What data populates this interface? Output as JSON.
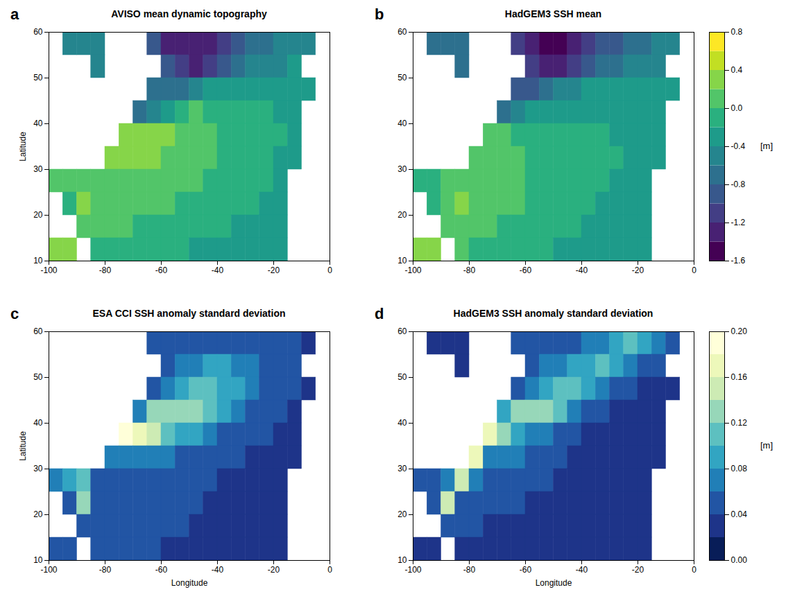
{
  "chart_data": [
    {
      "letter": "a",
      "title": "AVISO mean dynamic topography",
      "type": "heatmap",
      "ylabel": "Latitude",
      "xlim": [
        -100,
        0
      ],
      "ylim": [
        10,
        60
      ],
      "xticks": [
        -100,
        -80,
        -60,
        -40,
        -20,
        0
      ],
      "yticks": [
        10,
        20,
        30,
        40,
        50,
        60
      ],
      "lon_bins": [
        -100,
        -95,
        -90,
        -85,
        -80,
        -75,
        -70,
        -65,
        -60,
        -55,
        -50,
        -45,
        -40,
        -35,
        -30,
        -25,
        -20,
        -15,
        -10,
        -5,
        0
      ],
      "lat_bins": [
        60,
        55,
        50,
        45,
        40,
        35,
        30,
        25,
        20,
        15,
        10
      ],
      "z": [
        [
          null,
          -0.6,
          -0.6,
          -0.6,
          null,
          null,
          null,
          -1.0,
          -1.3,
          -1.4,
          -1.4,
          -1.3,
          -1.1,
          -0.9,
          -0.8,
          -0.7,
          -0.6,
          -0.5,
          -0.5,
          null
        ],
        [
          null,
          null,
          null,
          -0.6,
          null,
          null,
          null,
          null,
          -1.0,
          -1.2,
          -1.3,
          -1.1,
          -0.9,
          -0.7,
          -0.6,
          -0.5,
          -0.5,
          -0.4,
          null,
          null
        ],
        [
          null,
          null,
          null,
          null,
          null,
          null,
          null,
          -0.8,
          -0.8,
          -0.7,
          -0.5,
          -0.3,
          -0.3,
          -0.3,
          -0.3,
          -0.3,
          -0.3,
          -0.3,
          -0.3,
          null
        ],
        [
          null,
          null,
          null,
          null,
          null,
          null,
          -0.7,
          -0.5,
          -0.3,
          -0.1,
          0.1,
          -0.1,
          -0.2,
          -0.2,
          -0.2,
          -0.2,
          -0.3,
          -0.3,
          null,
          null
        ],
        [
          null,
          null,
          null,
          null,
          null,
          0.3,
          0.3,
          0.2,
          0.2,
          0.1,
          0.1,
          0.0,
          -0.1,
          -0.1,
          -0.2,
          -0.2,
          -0.2,
          -0.3,
          null,
          null
        ],
        [
          null,
          null,
          null,
          null,
          0.2,
          0.2,
          0.2,
          0.2,
          0.1,
          0.1,
          0.0,
          0.0,
          -0.1,
          -0.1,
          -0.2,
          -0.2,
          -0.3,
          -0.3,
          null,
          null
        ],
        [
          0.0,
          0.0,
          0.1,
          0.1,
          0.1,
          0.1,
          0.1,
          0.1,
          0.0,
          0.0,
          0.0,
          -0.1,
          -0.1,
          -0.2,
          -0.2,
          -0.2,
          -0.3,
          null,
          null,
          null
        ],
        [
          null,
          -0.1,
          0.2,
          0.0,
          0.0,
          0.0,
          0.0,
          0.0,
          0.0,
          -0.1,
          -0.1,
          -0.1,
          -0.2,
          -0.2,
          -0.2,
          -0.3,
          -0.3,
          null,
          null,
          null
        ],
        [
          null,
          null,
          0.0,
          0.1,
          0.1,
          0.0,
          -0.1,
          -0.1,
          -0.1,
          -0.1,
          -0.2,
          -0.2,
          -0.2,
          -0.3,
          -0.3,
          -0.3,
          -0.4,
          null,
          null,
          null
        ],
        [
          0.2,
          0.2,
          null,
          -0.1,
          -0.1,
          -0.1,
          -0.1,
          -0.2,
          -0.2,
          -0.2,
          -0.3,
          -0.3,
          -0.3,
          -0.3,
          -0.4,
          -0.4,
          -0.4,
          null,
          null,
          null
        ]
      ]
    },
    {
      "letter": "b",
      "title": "HadGEM3 SSH mean",
      "type": "heatmap",
      "xlim": [
        -100,
        0
      ],
      "ylim": [
        10,
        60
      ],
      "xticks": [
        -100,
        -80,
        -60,
        -40,
        -20,
        0
      ],
      "yticks": [
        10,
        20,
        30,
        40,
        50,
        60
      ],
      "lon_bins": [
        -100,
        -95,
        -90,
        -85,
        -80,
        -75,
        -70,
        -65,
        -60,
        -55,
        -50,
        -45,
        -40,
        -35,
        -30,
        -25,
        -20,
        -15,
        -10,
        -5,
        0
      ],
      "lat_bins": [
        60,
        55,
        50,
        45,
        40,
        35,
        30,
        25,
        20,
        15,
        10
      ],
      "z": [
        [
          null,
          -0.7,
          -0.7,
          -0.7,
          null,
          null,
          null,
          -1.1,
          -1.4,
          -1.5,
          -1.5,
          -1.4,
          -1.2,
          -1.0,
          -0.9,
          -0.8,
          -0.7,
          -0.6,
          -0.6,
          null
        ],
        [
          null,
          null,
          null,
          -0.7,
          null,
          null,
          null,
          null,
          -1.1,
          -1.3,
          -1.3,
          -1.1,
          -0.9,
          -0.8,
          -0.7,
          -0.6,
          -0.6,
          -0.5,
          null,
          null
        ],
        [
          null,
          null,
          null,
          null,
          null,
          null,
          null,
          -0.9,
          -0.9,
          -0.8,
          -0.6,
          -0.5,
          -0.4,
          -0.4,
          -0.4,
          -0.4,
          -0.4,
          -0.4,
          -0.4,
          null
        ],
        [
          null,
          null,
          null,
          null,
          null,
          null,
          -0.8,
          -0.6,
          -0.4,
          -0.3,
          -0.3,
          -0.3,
          -0.3,
          -0.3,
          -0.3,
          -0.3,
          -0.4,
          -0.4,
          null,
          null
        ],
        [
          null,
          null,
          null,
          null,
          null,
          0.0,
          0.0,
          -0.1,
          -0.1,
          -0.1,
          -0.2,
          -0.2,
          -0.2,
          -0.2,
          -0.3,
          -0.3,
          -0.3,
          -0.4,
          null,
          null
        ],
        [
          null,
          null,
          null,
          null,
          0.1,
          0.0,
          0.0,
          0.0,
          -0.1,
          -0.1,
          -0.1,
          -0.1,
          -0.2,
          -0.2,
          -0.2,
          -0.3,
          -0.3,
          -0.4,
          null,
          null
        ],
        [
          -0.1,
          -0.1,
          0.0,
          0.1,
          0.1,
          0.0,
          0.0,
          0.0,
          -0.1,
          -0.1,
          -0.1,
          -0.1,
          -0.2,
          -0.2,
          -0.3,
          -0.3,
          -0.3,
          null,
          null,
          null
        ],
        [
          null,
          -0.1,
          0.1,
          0.2,
          0.1,
          0.0,
          0.0,
          0.0,
          -0.1,
          -0.1,
          -0.1,
          -0.2,
          -0.2,
          -0.3,
          -0.3,
          -0.3,
          -0.4,
          null,
          null,
          null
        ],
        [
          null,
          null,
          0.1,
          0.1,
          0.1,
          0.0,
          -0.1,
          -0.1,
          -0.1,
          -0.2,
          -0.2,
          -0.2,
          -0.3,
          -0.3,
          -0.3,
          -0.4,
          -0.4,
          null,
          null,
          null
        ],
        [
          0.3,
          0.3,
          null,
          0.0,
          -0.1,
          -0.1,
          -0.1,
          -0.2,
          -0.2,
          -0.2,
          -0.3,
          -0.3,
          -0.3,
          -0.4,
          -0.4,
          -0.4,
          -0.4,
          null,
          null,
          null
        ]
      ],
      "colorbar": {
        "label": "[m]",
        "color": "viridis",
        "range": [
          -1.6,
          0.8
        ],
        "levels": [
          -1.6,
          -1.4,
          -1.2,
          -1.0,
          -0.8,
          -0.6,
          -0.4,
          -0.2,
          0.0,
          0.2,
          0.4,
          0.6,
          0.8
        ],
        "ticks": [
          -1.6,
          -1.2,
          -0.8,
          -0.4,
          {
            "value": 0,
            "label": "0.0"
          },
          0.4,
          0.8
        ]
      }
    },
    {
      "letter": "c",
      "title": "ESA CCI SSH anomaly standard deviation",
      "type": "heatmap",
      "xlabel": "Longitude",
      "ylabel": "Latitude",
      "xlim": [
        -100,
        0
      ],
      "ylim": [
        10,
        60
      ],
      "xticks": [
        -100,
        -80,
        -60,
        -40,
        -20,
        0
      ],
      "yticks": [
        10,
        20,
        30,
        40,
        50,
        60
      ],
      "lon_bins": [
        -100,
        -95,
        -90,
        -85,
        -80,
        -75,
        -70,
        -65,
        -60,
        -55,
        -50,
        -45,
        -40,
        -35,
        -30,
        -25,
        -20,
        -15,
        -10,
        -5,
        0
      ],
      "lat_bins": [
        60,
        55,
        50,
        45,
        40,
        35,
        30,
        25,
        20,
        15,
        10
      ],
      "z": [
        [
          null,
          null,
          null,
          null,
          null,
          null,
          null,
          0.05,
          0.05,
          0.05,
          0.05,
          0.05,
          0.05,
          0.05,
          0.04,
          0.04,
          0.04,
          0.04,
          0.03,
          null
        ],
        [
          null,
          null,
          null,
          null,
          null,
          null,
          null,
          null,
          0.05,
          0.06,
          0.07,
          0.08,
          0.08,
          0.07,
          0.06,
          0.05,
          0.04,
          0.04,
          null,
          null
        ],
        [
          null,
          null,
          null,
          null,
          null,
          null,
          null,
          0.05,
          0.07,
          0.09,
          0.1,
          0.1,
          0.09,
          0.08,
          0.07,
          0.05,
          0.04,
          0.04,
          0.03,
          null
        ],
        [
          null,
          null,
          null,
          null,
          null,
          null,
          0.07,
          0.12,
          0.13,
          0.12,
          0.12,
          0.1,
          0.08,
          0.06,
          0.05,
          0.04,
          0.04,
          0.03,
          null,
          null
        ],
        [
          null,
          null,
          null,
          null,
          null,
          0.18,
          0.17,
          0.14,
          0.1,
          0.09,
          0.08,
          0.07,
          0.05,
          0.05,
          0.04,
          0.04,
          0.03,
          0.03,
          null,
          null
        ],
        [
          null,
          null,
          null,
          null,
          0.06,
          0.07,
          0.07,
          0.06,
          0.06,
          0.05,
          0.05,
          0.04,
          0.04,
          0.04,
          0.03,
          0.03,
          0.03,
          0.03,
          null,
          null
        ],
        [
          0.06,
          0.08,
          0.1,
          0.05,
          0.05,
          0.05,
          0.05,
          0.05,
          0.04,
          0.04,
          0.04,
          0.04,
          0.03,
          0.03,
          0.03,
          0.03,
          0.03,
          null,
          null,
          null
        ],
        [
          null,
          0.05,
          0.12,
          0.05,
          0.04,
          0.04,
          0.04,
          0.04,
          0.04,
          0.04,
          0.04,
          0.03,
          0.03,
          0.03,
          0.03,
          0.03,
          0.03,
          null,
          null,
          null
        ],
        [
          null,
          null,
          0.05,
          0.05,
          0.05,
          0.04,
          0.04,
          0.04,
          0.04,
          0.04,
          0.03,
          0.03,
          0.03,
          0.03,
          0.03,
          0.03,
          0.03,
          null,
          null,
          null
        ],
        [
          0.05,
          0.05,
          null,
          0.04,
          0.04,
          0.04,
          0.04,
          0.04,
          0.03,
          0.03,
          0.03,
          0.03,
          0.03,
          0.03,
          0.03,
          0.03,
          0.03,
          null,
          null,
          null
        ]
      ]
    },
    {
      "letter": "d",
      "title": "HadGEM3 SSH anomaly standard deviation",
      "type": "heatmap",
      "xlabel": "Longitude",
      "xlim": [
        -100,
        0
      ],
      "ylim": [
        10,
        60
      ],
      "xticks": [
        -100,
        -80,
        -60,
        -40,
        -20,
        0
      ],
      "yticks": [
        10,
        20,
        30,
        40,
        50,
        60
      ],
      "lon_bins": [
        -100,
        -95,
        -90,
        -85,
        -80,
        -75,
        -70,
        -65,
        -60,
        -55,
        -50,
        -45,
        -40,
        -35,
        -30,
        -25,
        -20,
        -15,
        -10,
        -5,
        0
      ],
      "lat_bins": [
        60,
        55,
        50,
        45,
        40,
        35,
        30,
        25,
        20,
        15,
        10
      ],
      "z": [
        [
          null,
          0.02,
          0.02,
          0.02,
          null,
          null,
          null,
          0.04,
          0.05,
          0.05,
          0.05,
          0.05,
          0.06,
          0.07,
          0.08,
          0.1,
          0.09,
          0.06,
          0.04,
          null
        ],
        [
          null,
          null,
          null,
          0.02,
          null,
          null,
          null,
          null,
          0.05,
          0.06,
          0.07,
          0.08,
          0.09,
          0.1,
          0.09,
          0.07,
          0.05,
          0.04,
          null,
          null
        ],
        [
          null,
          null,
          null,
          null,
          null,
          null,
          null,
          0.04,
          0.06,
          0.08,
          0.1,
          0.11,
          0.08,
          0.06,
          0.05,
          0.04,
          0.03,
          0.03,
          0.03,
          null
        ],
        [
          null,
          null,
          null,
          null,
          null,
          null,
          0.08,
          0.13,
          0.12,
          0.13,
          0.11,
          0.07,
          0.05,
          0.04,
          0.03,
          0.03,
          0.02,
          0.02,
          null,
          null
        ],
        [
          null,
          null,
          null,
          null,
          null,
          0.17,
          0.12,
          0.08,
          0.06,
          0.06,
          0.05,
          0.04,
          0.03,
          0.03,
          0.03,
          0.02,
          0.02,
          0.02,
          null,
          null
        ],
        [
          null,
          null,
          null,
          null,
          0.16,
          0.07,
          0.06,
          0.06,
          0.05,
          0.05,
          0.04,
          0.03,
          0.03,
          0.02,
          0.02,
          0.02,
          0.02,
          0.02,
          null,
          null
        ],
        [
          0.04,
          0.05,
          0.06,
          0.14,
          0.06,
          0.05,
          0.05,
          0.05,
          0.04,
          0.04,
          0.03,
          0.03,
          0.02,
          0.02,
          0.02,
          0.02,
          0.02,
          null,
          null,
          null
        ],
        [
          null,
          0.04,
          0.14,
          0.04,
          0.04,
          0.04,
          0.04,
          0.04,
          0.03,
          0.03,
          0.03,
          0.02,
          0.02,
          0.02,
          0.02,
          0.02,
          0.02,
          null,
          null,
          null
        ],
        [
          null,
          null,
          0.04,
          0.04,
          0.04,
          0.03,
          0.03,
          0.03,
          0.02,
          0.02,
          0.02,
          0.02,
          0.02,
          0.02,
          0.02,
          0.02,
          0.02,
          null,
          null,
          null
        ],
        [
          0.02,
          0.02,
          null,
          0.03,
          0.03,
          0.03,
          0.02,
          0.02,
          0.02,
          0.02,
          0.02,
          0.02,
          0.02,
          0.02,
          0.02,
          0.02,
          0.02,
          null,
          null,
          null
        ]
      ],
      "colorbar": {
        "label": "[m]",
        "color": "YlGnBu_r",
        "range": [
          0,
          0.2
        ],
        "levels": [
          0,
          0.02,
          0.04,
          0.06,
          0.08,
          0.1,
          0.12,
          0.14,
          0.16,
          0.18,
          0.2
        ],
        "ticks": [
          {
            "value": 0,
            "label": "0.00"
          },
          0.04,
          0.08,
          0.12,
          0.16,
          {
            "value": 0.2,
            "label": "0.20"
          }
        ]
      }
    }
  ]
}
